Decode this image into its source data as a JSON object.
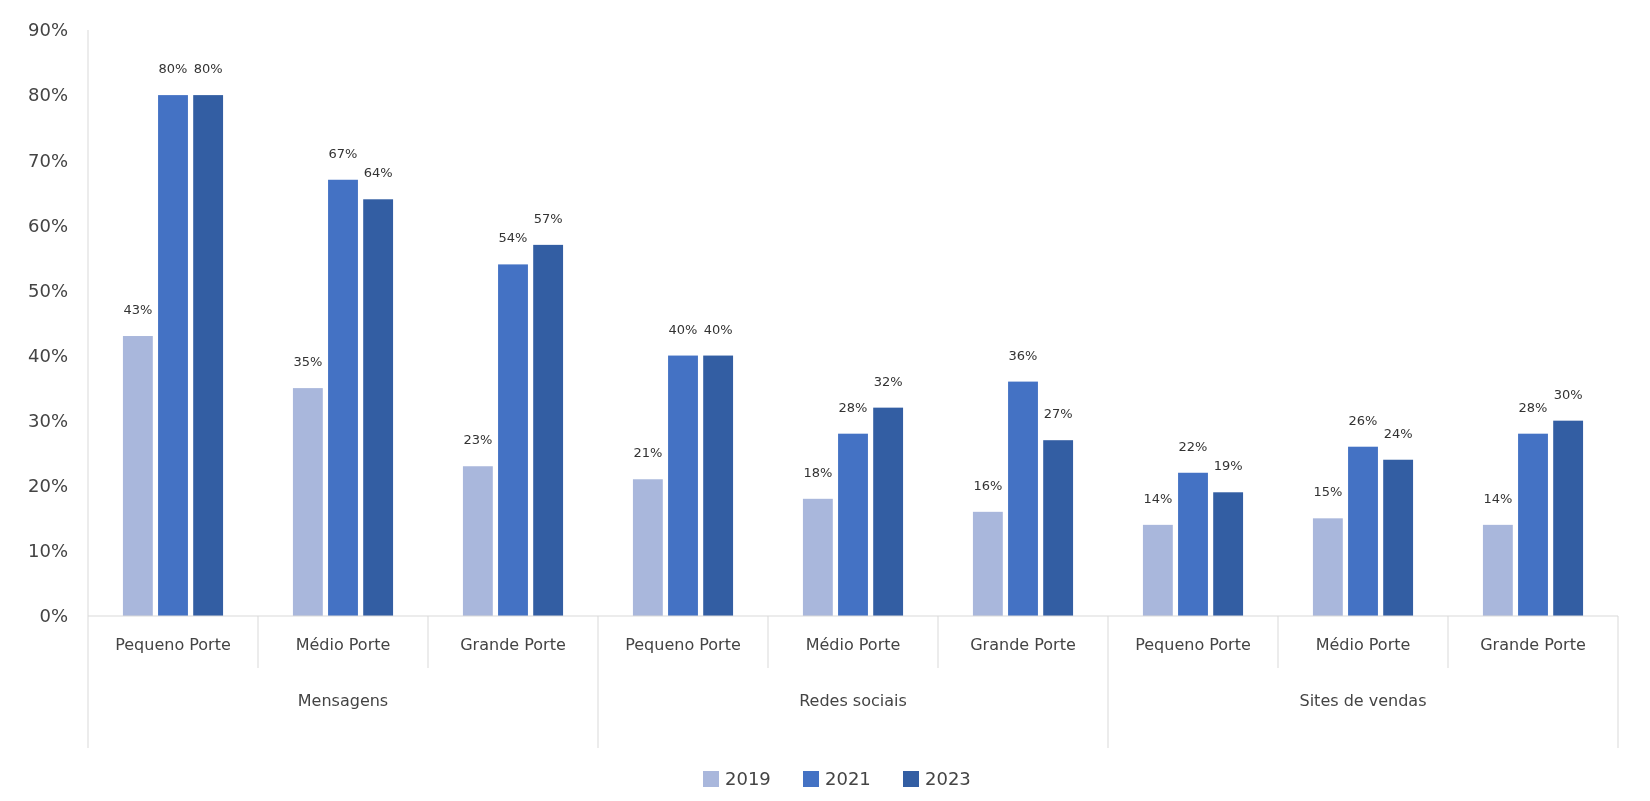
{
  "chart_data": {
    "type": "bar",
    "categories": [
      "Pequeno Porte",
      "Médio Porte",
      "Grande Porte",
      "Pequeno Porte",
      "Médio Porte",
      "Grande Porte",
      "Pequeno Porte",
      "Médio Porte",
      "Grande Porte"
    ],
    "annotations": [
      "Mensagens",
      "Redes sociais",
      "Sites de vendas"
    ],
    "series": [
      {
        "name": "2019",
        "color": "#a9b7dc",
        "values": [
          43,
          35,
          23,
          21,
          18,
          16,
          14,
          15,
          14
        ],
        "value_labels": [
          "43%",
          "35%",
          "23%",
          "21%",
          "18%",
          "16%",
          "14%",
          "15%",
          "14%"
        ]
      },
      {
        "name": "2021",
        "color": "#4472c4",
        "values": [
          80,
          67,
          54,
          40,
          28,
          36,
          22,
          26,
          28
        ],
        "value_labels": [
          "80%",
          "67%",
          "54%",
          "40%",
          "28%",
          "36%",
          "22%",
          "26%",
          "28%"
        ]
      },
      {
        "name": "2023",
        "color": "#335ea3",
        "values": [
          80,
          64,
          57,
          40,
          32,
          27,
          19,
          24,
          30
        ],
        "value_labels": [
          "80%",
          "64%",
          "57%",
          "40%",
          "32%",
          "27%",
          "19%",
          "24%",
          "30%"
        ]
      }
    ],
    "ylim": [
      0,
      90
    ],
    "yticks": [
      {
        "value": 0,
        "label": "0%"
      },
      {
        "value": 10,
        "label": "10%"
      },
      {
        "value": 20,
        "label": "20%"
      },
      {
        "value": 30,
        "label": "30%"
      },
      {
        "value": 40,
        "label": "40%"
      },
      {
        "value": 50,
        "label": "50%"
      },
      {
        "value": 60,
        "label": "60%"
      },
      {
        "value": 70,
        "label": "70%"
      },
      {
        "value": 80,
        "label": "80%"
      },
      {
        "value": 90,
        "label": "90%"
      }
    ],
    "grid": false,
    "legend": "bottom"
  }
}
